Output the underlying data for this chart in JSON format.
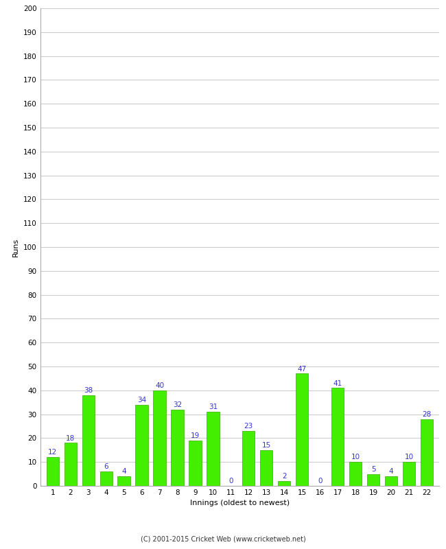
{
  "xlabel": "Innings (oldest to newest)",
  "ylabel": "Runs",
  "categories": [
    1,
    2,
    3,
    4,
    5,
    6,
    7,
    8,
    9,
    10,
    11,
    12,
    13,
    14,
    15,
    16,
    17,
    18,
    19,
    20,
    21,
    22
  ],
  "values": [
    12,
    18,
    38,
    6,
    4,
    34,
    40,
    32,
    19,
    31,
    0,
    23,
    15,
    2,
    47,
    0,
    41,
    10,
    5,
    4,
    10,
    28
  ],
  "bar_color": "#44ee00",
  "bar_edge_color": "#33aa00",
  "label_color": "#3333cc",
  "ylim": [
    0,
    200
  ],
  "yticks": [
    0,
    10,
    20,
    30,
    40,
    50,
    60,
    70,
    80,
    90,
    100,
    110,
    120,
    130,
    140,
    150,
    160,
    170,
    180,
    190,
    200
  ],
  "background_color": "#ffffff",
  "grid_color": "#cccccc",
  "label_fontsize": 7.5,
  "axis_label_fontsize": 8,
  "tick_fontsize": 7.5,
  "footer": "(C) 2001-2015 Cricket Web (www.cricketweb.net)",
  "footer_fontsize": 7
}
